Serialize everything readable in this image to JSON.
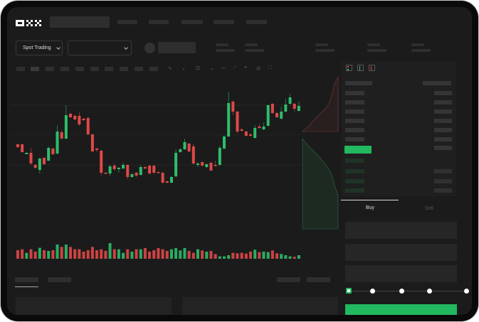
{
  "header": {
    "logo": "OKX"
  },
  "toolbar": {
    "market_selector": "Spot Trading",
    "pair_selector_icon": "chevron-down-icon"
  },
  "orderbook": {
    "view_icons": [
      "orderbook-both-icon",
      "orderbook-bids-icon",
      "orderbook-asks-icon"
    ]
  },
  "order_form": {
    "tabs": [
      "Buy",
      "Sell"
    ],
    "active_tab": "Buy",
    "slider_value": 0,
    "slider_stops": 5
  },
  "colors": {
    "up": "#2ebd6b",
    "down": "#e04848",
    "background": "#1b1b1b",
    "accent": "#22b860"
  },
  "chart_data": {
    "type": "candlestick",
    "fields": [
      "open",
      "high",
      "low",
      "close"
    ],
    "candles": [
      [
        97,
        98,
        92,
        93
      ],
      [
        97,
        98,
        85,
        86
      ],
      [
        83,
        86,
        83,
        85
      ],
      [
        85,
        92,
        68,
        70
      ],
      [
        68,
        69,
        63,
        64
      ],
      [
        61,
        78,
        56,
        77
      ],
      [
        78,
        79,
        68,
        69
      ],
      [
        74,
        94,
        73,
        92
      ],
      [
        91,
        92,
        82,
        83
      ],
      [
        84,
        124,
        83,
        115
      ],
      [
        114,
        117,
        104,
        105
      ],
      [
        105,
        152,
        104,
        138
      ],
      [
        140,
        141,
        134,
        135
      ],
      [
        137,
        139,
        131,
        132
      ],
      [
        137,
        142,
        123,
        125
      ],
      [
        133,
        134,
        130,
        131
      ],
      [
        134,
        136,
        110,
        111
      ],
      [
        111,
        112,
        86,
        87
      ],
      [
        91,
        92,
        86,
        89
      ],
      [
        88,
        89,
        53,
        57
      ],
      [
        57,
        58,
        55,
        56
      ],
      [
        56,
        68,
        53,
        66
      ],
      [
        67,
        70,
        60,
        62
      ],
      [
        62,
        65,
        57,
        64
      ],
      [
        63,
        71,
        62,
        68
      ],
      [
        68,
        69,
        48,
        51
      ],
      [
        51,
        56,
        50,
        55
      ],
      [
        57,
        58,
        51,
        53
      ],
      [
        54,
        68,
        53,
        65
      ],
      [
        65,
        66,
        62,
        63
      ],
      [
        67,
        68,
        54,
        56
      ],
      [
        67,
        68,
        55,
        57
      ],
      [
        58,
        59,
        56,
        57
      ],
      [
        57,
        58,
        42,
        43
      ],
      [
        45,
        46,
        42,
        43
      ],
      [
        43,
        52,
        42,
        51
      ],
      [
        52,
        90,
        50,
        85
      ],
      [
        86,
        92,
        85,
        90
      ],
      [
        90,
        105,
        89,
        100
      ],
      [
        98,
        99,
        86,
        87
      ],
      [
        94,
        98,
        68,
        70
      ],
      [
        68,
        72,
        65,
        70
      ],
      [
        72,
        73,
        66,
        67
      ],
      [
        65,
        70,
        64,
        69
      ],
      [
        71,
        72,
        60,
        60
      ],
      [
        68,
        74,
        66,
        67
      ],
      [
        68,
        95,
        67,
        92
      ],
      [
        91,
        110,
        90,
        108
      ],
      [
        108,
        171,
        107,
        155
      ],
      [
        157,
        159,
        138,
        143
      ],
      [
        143,
        144,
        112,
        115
      ],
      [
        118,
        120,
        115,
        116
      ],
      [
        115,
        116,
        108,
        109
      ],
      [
        111,
        113,
        108,
        109
      ],
      [
        106,
        124,
        105,
        120
      ],
      [
        122,
        126,
        119,
        120
      ],
      [
        118,
        128,
        117,
        122
      ],
      [
        123,
        153,
        122,
        152
      ],
      [
        154,
        155,
        140,
        141
      ],
      [
        141,
        142,
        134,
        135
      ],
      [
        133,
        150,
        132,
        143
      ],
      [
        143,
        161,
        142,
        153
      ],
      [
        154,
        168,
        153,
        163
      ],
      [
        154,
        155,
        143,
        147
      ],
      [
        144,
        158,
        143,
        151
      ]
    ],
    "volume": [
      36,
      40,
      25,
      40,
      30,
      46,
      36,
      33,
      36,
      60,
      50,
      60,
      50,
      40,
      40,
      30,
      36,
      50,
      36,
      40,
      33,
      66,
      40,
      40,
      25,
      40,
      30,
      40,
      40,
      45,
      30,
      36,
      45,
      40,
      33,
      40,
      45,
      35,
      45,
      33,
      25,
      40,
      35,
      30,
      33,
      20,
      10,
      10,
      15,
      25,
      23,
      25,
      22,
      30,
      38,
      28,
      30,
      28,
      35,
      23,
      20,
      15,
      10,
      8,
      15
    ]
  }
}
